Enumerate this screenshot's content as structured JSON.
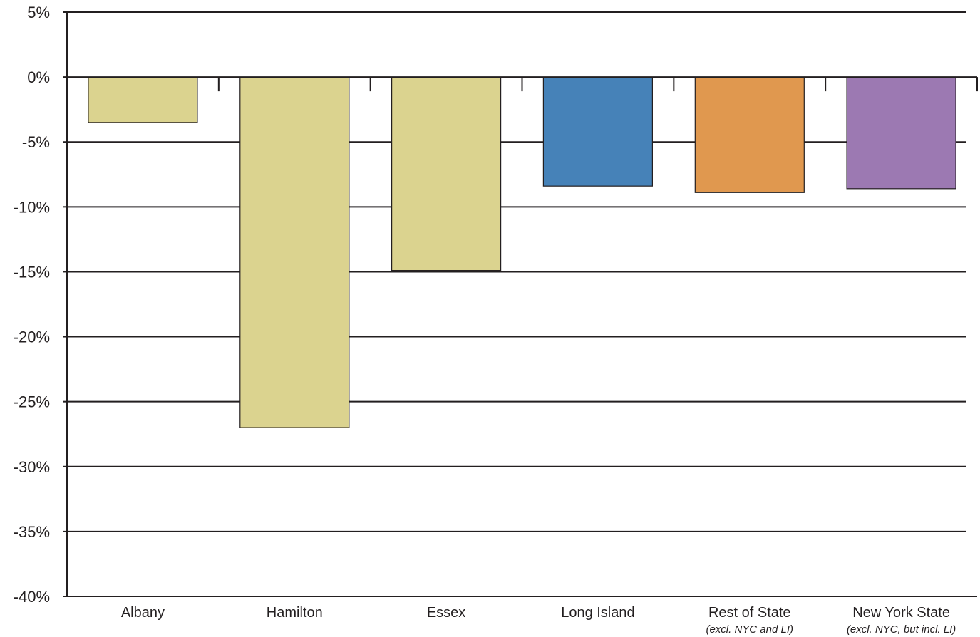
{
  "chart_data": {
    "type": "bar",
    "title": "",
    "xlabel": "",
    "ylabel": "",
    "ylim": [
      -40,
      5
    ],
    "y_ticks": [
      5,
      0,
      -5,
      -10,
      -15,
      -20,
      -25,
      -30,
      -35,
      -40
    ],
    "y_tick_labels": [
      "5%",
      "0%",
      "-5%",
      "-10%",
      "-15%",
      "-20%",
      "-25%",
      "-30%",
      "-35%",
      "-40%"
    ],
    "grid": true,
    "categories": [
      {
        "label": "Albany",
        "sublabel": ""
      },
      {
        "label": "Hamilton",
        "sublabel": ""
      },
      {
        "label": "Essex",
        "sublabel": ""
      },
      {
        "label": "Long Island",
        "sublabel": ""
      },
      {
        "label": "Rest of State",
        "sublabel": "(excl. NYC and LI)"
      },
      {
        "label": "New York State",
        "sublabel": "(excl. NYC, but incl. LI)"
      }
    ],
    "values": [
      -3.5,
      -27.0,
      -14.9,
      -8.4,
      -8.9,
      -8.6
    ],
    "colors": [
      "#dbd38f",
      "#dbd38f",
      "#dbd38f",
      "#4682b8",
      "#e0984f",
      "#9c79b2"
    ]
  }
}
